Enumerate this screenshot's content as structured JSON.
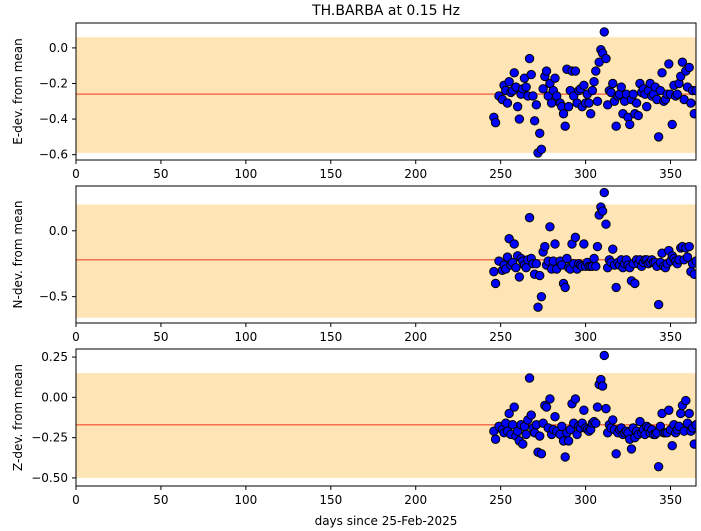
{
  "chart_data": {
    "type": "scatter",
    "title": "TH.BARBA at 0.15 Hz",
    "xlabel": "days since 25-Feb-2025",
    "xlim": [
      0,
      365
    ],
    "xticks": [
      0,
      50,
      100,
      150,
      200,
      250,
      300,
      350
    ],
    "x": [
      246,
      247,
      249,
      251,
      252,
      253,
      254,
      255,
      256,
      257,
      258,
      259,
      260,
      261,
      262,
      263,
      264,
      265,
      266,
      267,
      268,
      269,
      270,
      271,
      272,
      273,
      274,
      275,
      276,
      277,
      278,
      279,
      280,
      281,
      282,
      283,
      285,
      286,
      287,
      288,
      289,
      290,
      291,
      292,
      293,
      294,
      295,
      296,
      297,
      298,
      299,
      300,
      301,
      302,
      303,
      304,
      305,
      306,
      307,
      308,
      309,
      310,
      311,
      312,
      313,
      314,
      315,
      316,
      317,
      318,
      319,
      320,
      321,
      322,
      323,
      324,
      325,
      326,
      327,
      328,
      329,
      330,
      331,
      332,
      333,
      334,
      335,
      336,
      337,
      338,
      339,
      340,
      341,
      342,
      343,
      344,
      345,
      346,
      347,
      348,
      349,
      350,
      351,
      352,
      353,
      354,
      355,
      356,
      357,
      358,
      359,
      360,
      361,
      362,
      363,
      364,
      365
    ],
    "panels": [
      {
        "ylabel": "E-dev. from mean",
        "ylim": [
          -0.63,
          0.14
        ],
        "yticks": [
          0.0,
          -0.2,
          -0.4,
          -0.6
        ],
        "ytick_labels": [
          "0.0",
          "−0.2",
          "−0.4",
          "−0.6"
        ],
        "mean": -0.26,
        "band": [
          -0.59,
          0.06
        ],
        "y": [
          -0.39,
          -0.42,
          -0.27,
          -0.29,
          -0.21,
          -0.24,
          -0.31,
          -0.19,
          -0.25,
          -0.24,
          -0.14,
          -0.22,
          -0.33,
          -0.4,
          -0.26,
          -0.23,
          -0.17,
          -0.22,
          -0.27,
          -0.06,
          -0.15,
          -0.27,
          -0.41,
          -0.32,
          -0.59,
          -0.48,
          -0.57,
          -0.23,
          -0.16,
          -0.13,
          -0.27,
          -0.2,
          -0.31,
          -0.24,
          -0.17,
          -0.27,
          -0.31,
          -0.33,
          -0.37,
          -0.44,
          -0.12,
          -0.33,
          -0.24,
          -0.13,
          -0.27,
          -0.13,
          -0.31,
          -0.24,
          -0.23,
          -0.33,
          -0.21,
          -0.31,
          -0.26,
          -0.31,
          -0.37,
          -0.24,
          -0.19,
          -0.13,
          -0.3,
          -0.08,
          -0.01,
          -0.03,
          0.09,
          -0.06,
          -0.32,
          -0.24,
          -0.25,
          -0.2,
          -0.3,
          -0.44,
          -0.27,
          -0.26,
          -0.22,
          -0.37,
          -0.3,
          -0.26,
          -0.39,
          -0.43,
          -0.29,
          -0.26,
          -0.37,
          -0.31,
          -0.38,
          -0.2,
          -0.25,
          -0.23,
          -0.26,
          -0.33,
          -0.24,
          -0.2,
          -0.27,
          -0.26,
          -0.22,
          -0.29,
          -0.5,
          -0.24,
          -0.14,
          -0.3,
          -0.29,
          -0.26,
          -0.09,
          -0.26,
          -0.43,
          -0.21,
          -0.27,
          -0.26,
          -0.2,
          -0.16,
          -0.08,
          -0.29,
          -0.13,
          -0.22,
          -0.11,
          -0.31,
          -0.24,
          -0.37,
          -0.24
        ]
      },
      {
        "ylabel": "N-dev. from mean",
        "ylim": [
          -0.7,
          0.34
        ],
        "yticks": [
          0.0,
          -0.5
        ],
        "ytick_labels": [
          "0.0",
          "−0.5"
        ],
        "mean": -0.22,
        "band": [
          -0.66,
          0.2
        ],
        "y": [
          -0.31,
          -0.4,
          -0.23,
          -0.3,
          -0.26,
          -0.29,
          -0.2,
          -0.06,
          -0.26,
          -0.24,
          -0.1,
          -0.28,
          -0.19,
          -0.35,
          -0.21,
          -0.23,
          -0.26,
          -0.28,
          -0.22,
          0.1,
          -0.21,
          -0.25,
          -0.33,
          -0.25,
          -0.58,
          -0.34,
          -0.5,
          -0.16,
          -0.12,
          -0.26,
          -0.23,
          0.03,
          -0.29,
          -0.23,
          -0.1,
          -0.29,
          -0.23,
          -0.26,
          -0.4,
          -0.43,
          -0.21,
          -0.28,
          -0.29,
          -0.1,
          -0.25,
          -0.05,
          -0.29,
          -0.25,
          -0.26,
          -0.27,
          -0.1,
          -0.27,
          -0.24,
          -0.27,
          -0.27,
          -0.27,
          -0.21,
          -0.27,
          -0.12,
          0.12,
          0.18,
          0.15,
          0.29,
          0.05,
          -0.28,
          -0.22,
          -0.24,
          -0.14,
          -0.26,
          -0.43,
          -0.24,
          -0.26,
          -0.22,
          -0.28,
          -0.25,
          -0.22,
          -0.26,
          -0.28,
          -0.38,
          -0.25,
          -0.4,
          -0.22,
          -0.25,
          -0.22,
          -0.27,
          -0.24,
          -0.22,
          -0.22,
          -0.25,
          -0.24,
          -0.22,
          -0.24,
          -0.24,
          -0.27,
          -0.56,
          -0.24,
          -0.17,
          -0.27,
          -0.28,
          -0.25,
          -0.15,
          -0.23,
          -0.19,
          -0.21,
          -0.23,
          -0.25,
          -0.22,
          -0.13,
          -0.12,
          -0.22,
          -0.13,
          -0.2,
          -0.12,
          -0.31,
          -0.25,
          -0.33,
          -0.23
        ]
      },
      {
        "ylabel": "Z-dev. from mean",
        "ylim": [
          -0.55,
          0.3
        ],
        "yticks": [
          0.25,
          0.0,
          -0.25,
          -0.5
        ],
        "ytick_labels": [
          "0.25",
          "0.00",
          "−0.25",
          "−0.50"
        ],
        "mean": -0.17,
        "band": [
          -0.5,
          0.15
        ],
        "y": [
          -0.21,
          -0.26,
          -0.18,
          -0.2,
          -0.22,
          -0.16,
          -0.21,
          -0.1,
          -0.23,
          -0.17,
          -0.06,
          -0.24,
          -0.21,
          -0.27,
          -0.17,
          -0.29,
          -0.18,
          -0.23,
          -0.14,
          0.12,
          -0.11,
          -0.19,
          -0.22,
          -0.17,
          -0.34,
          -0.24,
          -0.35,
          -0.16,
          -0.05,
          -0.06,
          -0.19,
          -0.01,
          -0.23,
          -0.2,
          -0.12,
          -0.21,
          -0.23,
          -0.18,
          -0.27,
          -0.37,
          -0.22,
          -0.27,
          -0.2,
          -0.04,
          -0.16,
          -0.01,
          -0.23,
          -0.18,
          -0.19,
          -0.16,
          -0.08,
          -0.19,
          -0.2,
          -0.21,
          -0.2,
          -0.16,
          -0.15,
          -0.16,
          -0.06,
          0.08,
          0.11,
          0.07,
          0.26,
          -0.07,
          -0.22,
          -0.17,
          -0.19,
          -0.14,
          -0.2,
          -0.35,
          -0.22,
          -0.2,
          -0.19,
          -0.23,
          -0.22,
          -0.21,
          -0.22,
          -0.26,
          -0.32,
          -0.19,
          -0.25,
          -0.21,
          -0.23,
          -0.15,
          -0.22,
          -0.2,
          -0.23,
          -0.18,
          -0.19,
          -0.22,
          -0.2,
          -0.23,
          -0.23,
          -0.22,
          -0.43,
          -0.18,
          -0.1,
          -0.22,
          -0.22,
          -0.22,
          -0.08,
          -0.2,
          -0.3,
          -0.17,
          -0.22,
          -0.2,
          -0.18,
          -0.1,
          -0.05,
          -0.21,
          -0.02,
          -0.16,
          -0.1,
          -0.21,
          -0.19,
          -0.29,
          -0.17
        ]
      }
    ],
    "colors": {
      "marker_fill": "#0000ff",
      "marker_edge": "#000000",
      "mean_line": "#f07050",
      "band": "#ffe4b5",
      "frame": "#000000"
    }
  }
}
